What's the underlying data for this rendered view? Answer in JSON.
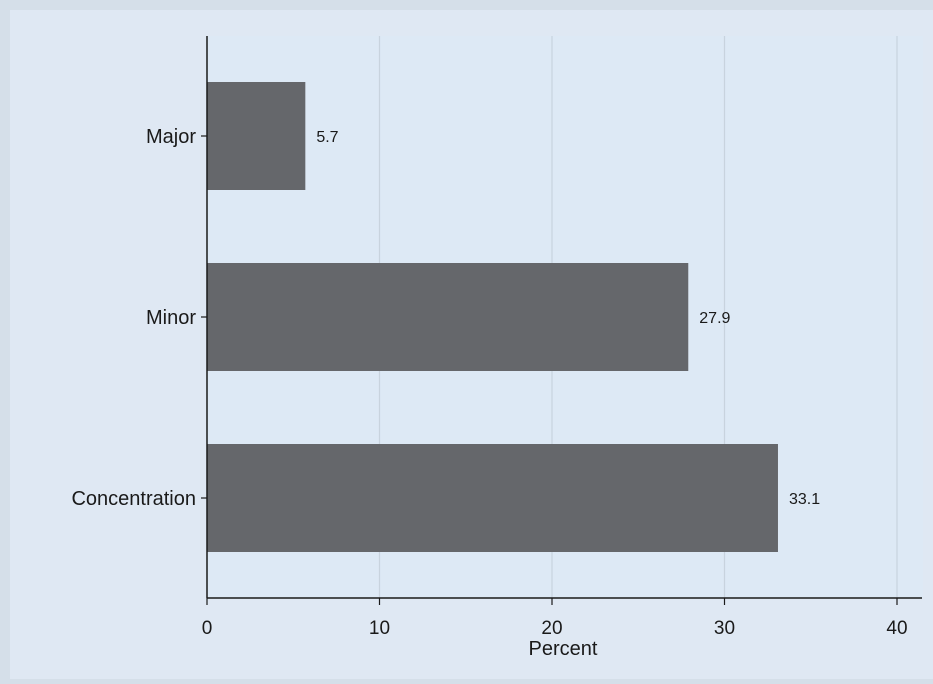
{
  "colors": {
    "outer_background": "#d5dfe9",
    "frame_background": "#dfe8f3",
    "plot_background": "#dde9f5",
    "bar_fill": "#65676b",
    "gridline": "#c8d3de",
    "axis_line": "#1a1a1a"
  },
  "chart_data": {
    "type": "bar",
    "orientation": "horizontal",
    "categories": [
      "Major",
      "Minor",
      "Concentration"
    ],
    "values": [
      5.7,
      27.9,
      33.1
    ],
    "value_labels": [
      "5.7",
      "27.9",
      "33.1"
    ],
    "title": "",
    "xlabel": "Percent",
    "ylabel": "",
    "xlim": [
      0,
      40
    ],
    "x_ticks": [
      0,
      10,
      20,
      30,
      40
    ],
    "x_tick_labels": [
      "0",
      "10",
      "20",
      "30",
      "40"
    ],
    "grid": "vertical",
    "legend": "none"
  }
}
